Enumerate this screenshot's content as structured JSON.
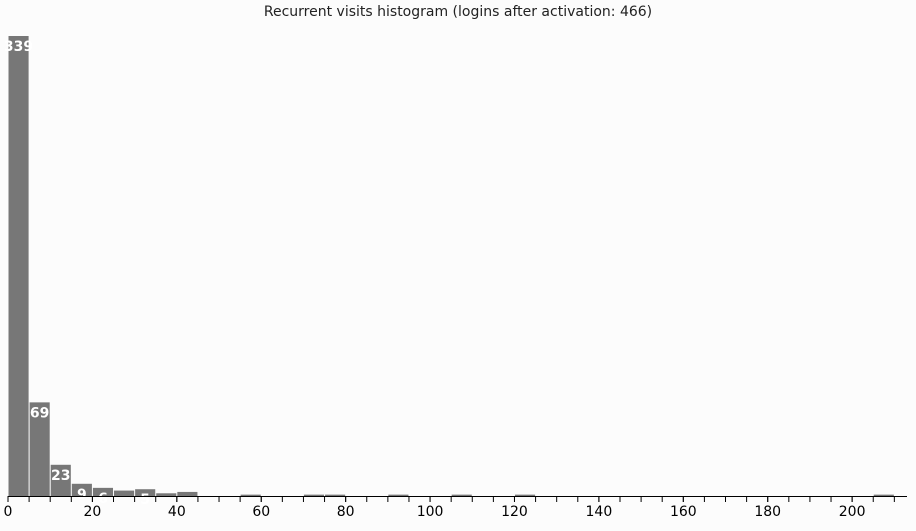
{
  "chart_data": {
    "type": "bar",
    "title": "Recurrent visits histogram (logins after activation: 466)",
    "xlabel": "",
    "ylabel": "",
    "xlim": [
      0,
      213
    ],
    "ylim": [
      0,
      339
    ],
    "bin_width": 5,
    "x_ticks": [
      0,
      20,
      40,
      60,
      80,
      100,
      120,
      140,
      160,
      180,
      200
    ],
    "bars": [
      {
        "x0": 0,
        "x1": 5,
        "value": 339,
        "label": "339"
      },
      {
        "x0": 5,
        "x1": 10,
        "value": 69,
        "label": "69"
      },
      {
        "x0": 10,
        "x1": 15,
        "value": 23,
        "label": "23"
      },
      {
        "x0": 15,
        "x1": 20,
        "value": 9,
        "label": "9"
      },
      {
        "x0": 20,
        "x1": 25,
        "value": 6,
        "label": "6"
      },
      {
        "x0": 25,
        "x1": 30,
        "value": 4,
        "label": ""
      },
      {
        "x0": 30,
        "x1": 35,
        "value": 5,
        "label": "5"
      },
      {
        "x0": 35,
        "x1": 40,
        "value": 2,
        "label": ""
      },
      {
        "x0": 40,
        "x1": 45,
        "value": 3,
        "label": ""
      },
      {
        "x0": 55,
        "x1": 60,
        "value": 1,
        "label": ""
      },
      {
        "x0": 70,
        "x1": 75,
        "value": 1,
        "label": ""
      },
      {
        "x0": 75,
        "x1": 80,
        "value": 1,
        "label": ""
      },
      {
        "x0": 90,
        "x1": 95,
        "value": 1,
        "label": ""
      },
      {
        "x0": 105,
        "x1": 110,
        "value": 1,
        "label": ""
      },
      {
        "x0": 120,
        "x1": 125,
        "value": 1,
        "label": ""
      },
      {
        "x0": 205,
        "x1": 210,
        "value": 1,
        "label": ""
      }
    ]
  }
}
